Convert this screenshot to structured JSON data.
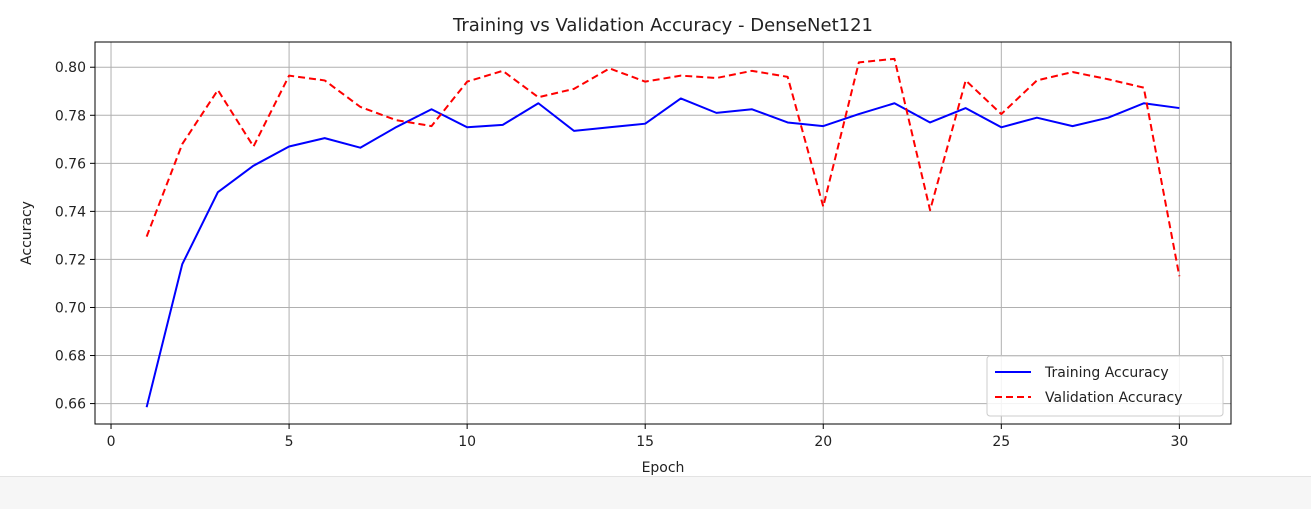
{
  "chart_data": {
    "type": "line",
    "title": "Training vs Validation Accuracy - DenseNet121",
    "xlabel": "Epoch",
    "ylabel": "Accuracy",
    "xlim": [
      -0.45,
      31.45
    ],
    "ylim": [
      0.6515,
      0.8105
    ],
    "xticks": [
      0,
      5,
      10,
      15,
      20,
      25,
      30
    ],
    "yticks": [
      0.66,
      0.68,
      0.7,
      0.72,
      0.74,
      0.76,
      0.78,
      0.8
    ],
    "ytick_labels": [
      "0.66",
      "0.68",
      "0.70",
      "0.72",
      "0.74",
      "0.76",
      "0.78",
      "0.80"
    ],
    "grid": true,
    "legend_position": "bottom-right",
    "x": [
      1,
      2,
      3,
      4,
      5,
      6,
      7,
      8,
      9,
      10,
      11,
      12,
      13,
      14,
      15,
      16,
      17,
      18,
      19,
      20,
      21,
      22,
      23,
      24,
      25,
      26,
      27,
      28,
      29,
      30
    ],
    "series": [
      {
        "name": "Training Accuracy",
        "color": "#0000ff",
        "style": "solid",
        "values": [
          0.6585,
          0.718,
          0.748,
          0.759,
          0.767,
          0.7705,
          0.7665,
          0.775,
          0.7825,
          0.775,
          0.776,
          0.785,
          0.7735,
          0.775,
          0.7765,
          0.787,
          0.781,
          0.7825,
          0.777,
          0.7755,
          0.7805,
          0.785,
          0.777,
          0.783,
          0.775,
          0.779,
          0.7755,
          0.779,
          0.785,
          0.783
        ]
      },
      {
        "name": "Validation Accuracy",
        "color": "#ff0000",
        "style": "dashed",
        "values": [
          0.7295,
          0.768,
          0.7905,
          0.767,
          0.7965,
          0.7945,
          0.7835,
          0.778,
          0.7755,
          0.794,
          0.7985,
          0.7875,
          0.791,
          0.7995,
          0.794,
          0.7965,
          0.7955,
          0.7985,
          0.796,
          0.742,
          0.802,
          0.8035,
          0.7405,
          0.7945,
          0.7805,
          0.7945,
          0.798,
          0.795,
          0.7915,
          0.713
        ]
      }
    ]
  }
}
